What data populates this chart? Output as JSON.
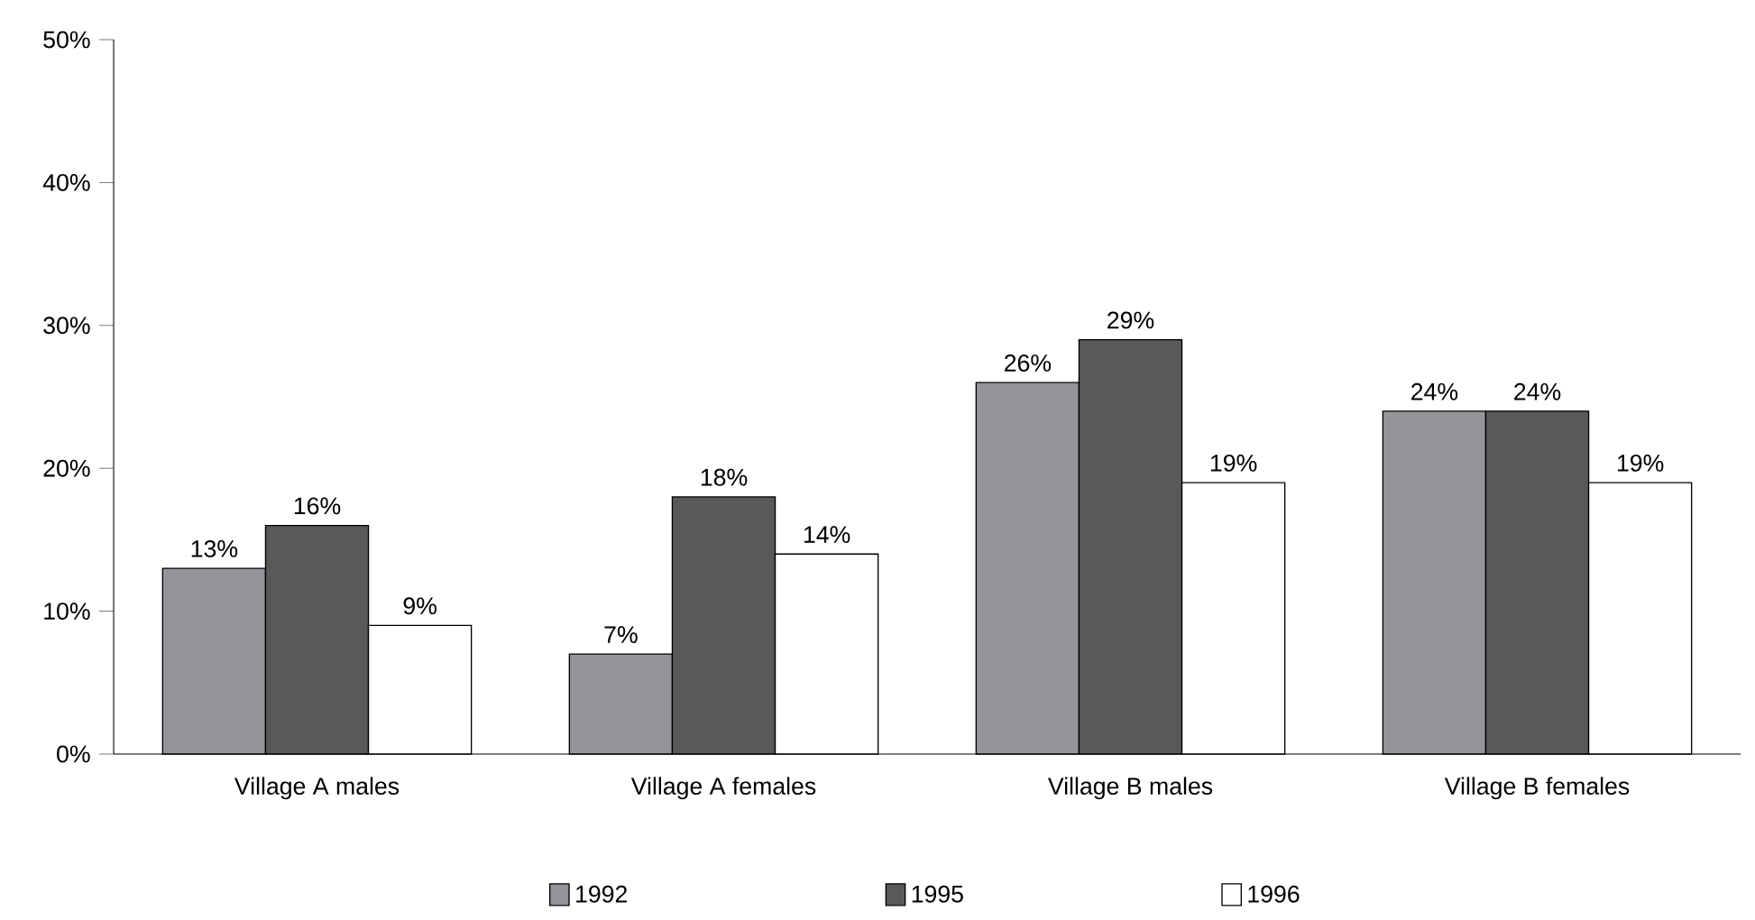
{
  "chart_data": {
    "type": "bar",
    "categories": [
      "Village A males",
      "Village A females",
      "Village B males",
      "Village B females"
    ],
    "series": [
      {
        "name": "1992",
        "color": "#939598",
        "values": [
          13,
          7,
          26,
          24
        ],
        "value_labels": [
          "13%",
          "7%",
          "26%",
          "24%"
        ]
      },
      {
        "name": "1995",
        "color": "#58595b",
        "values": [
          16,
          18,
          29,
          24
        ],
        "value_labels": [
          "16%",
          "18%",
          "29%",
          "24%"
        ]
      },
      {
        "name": "1996",
        "color": "#ffffff",
        "values": [
          9,
          14,
          19,
          19
        ],
        "value_labels": [
          "9%",
          "14%",
          "19%",
          "19%"
        ]
      }
    ],
    "ylim": [
      0,
      50
    ],
    "yticks": [
      {
        "value": 0,
        "label": "0%"
      },
      {
        "value": 10,
        "label": "10%"
      },
      {
        "value": 20,
        "label": "20%"
      },
      {
        "value": 30,
        "label": "30%"
      },
      {
        "value": 40,
        "label": "40%"
      },
      {
        "value": 50,
        "label": "50%"
      }
    ],
    "grid": false,
    "legend": "bottom"
  }
}
